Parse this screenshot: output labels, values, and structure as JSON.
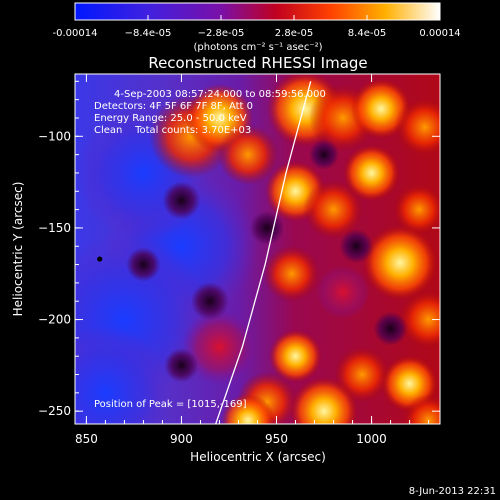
{
  "colorbar": {
    "tick_labels": [
      "-0.00014",
      "−8.4e-05",
      "−2.8e-05",
      "2.8e-05",
      "8.4e-05",
      "0.00014"
    ],
    "unit_label": "(photons cm⁻² s⁻¹ asec⁻²)"
  },
  "chart_data": {
    "type": "heatmap",
    "title": "Reconstructed RHESSI Image",
    "xlabel": "Heliocentric X (arcsec)",
    "ylabel": "Heliocentric Y (arcsec)",
    "xlim": [
      844,
      1036
    ],
    "ylim": [
      -257,
      -66
    ],
    "x_ticks": [
      850,
      900,
      950,
      1000
    ],
    "y_ticks": [
      -100,
      -150,
      -200,
      -250
    ],
    "x_tick_labels": [
      "850",
      "900",
      "950",
      "1000"
    ],
    "y_tick_labels": [
      "−100",
      "−150",
      "−200",
      "−250"
    ],
    "color_range": [
      -0.00014,
      0.00014
    ],
    "colormap": "rainbow-blue-purple-red-yellow-white",
    "annotations": [
      "4-Sep-2003 08:57:24.000 to 08:59:56.000",
      "Detectors: 4F 5F 6F 7F 8F, Att 0",
      "Energy Range: 25.0 - 50.0 keV",
      "Clean    Total counts: 3.70E+03"
    ],
    "peak_label": "Position of Peak = [1015,-169]",
    "peak": [
      1015,
      -169
    ],
    "marked_point": [
      857,
      -167
    ],
    "limb_curve": [
      [
        968,
        -70
      ],
      [
        955,
        -120
      ],
      [
        944,
        -170
      ],
      [
        932,
        -215
      ],
      [
        918,
        -257
      ]
    ]
  },
  "timestamp": "8-Jun-2013 22:31"
}
